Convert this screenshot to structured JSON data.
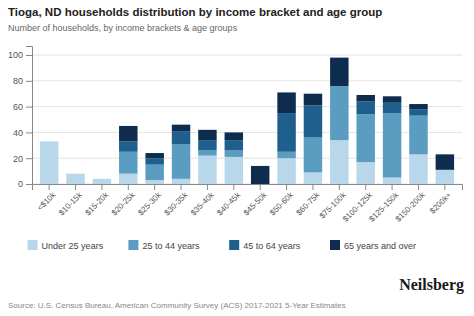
{
  "chart_data": {
    "type": "bar",
    "stacked": true,
    "title": "Tioga, ND households distribution by income bracket and age group",
    "subtitle": "Number of households, by income brackets & age groups",
    "annotations": [
      "Source: U.S. Census Bureau, American Community Survey (ACS) 2017-2021 5-Year Estimates",
      "Neilsberg"
    ],
    "categories": [
      "<$10k",
      "$10-15k",
      "$15-20k",
      "$20-25k",
      "$25-30k",
      "$30-35k",
      "$35-40k",
      "$40-45k",
      "$45-50k",
      "$50-60k",
      "$60-75k",
      "$75-100k",
      "$100-125k",
      "$125-150k",
      "$150-200k",
      "$200k+"
    ],
    "series": [
      {
        "name": "Under 25 years",
        "color": "#b8d7ea",
        "values": [
          33,
          8,
          4,
          8,
          3,
          4,
          22,
          21,
          0,
          20,
          9,
          34,
          17,
          5,
          23,
          11
        ]
      },
      {
        "name": "25 to 44 years",
        "color": "#5b9dc0",
        "values": [
          0,
          0,
          0,
          17,
          12,
          27,
          4,
          5,
          0,
          5,
          27,
          42,
          37,
          50,
          30,
          0
        ]
      },
      {
        "name": "45 to 64 years",
        "color": "#1e5f8e",
        "values": [
          0,
          0,
          0,
          8,
          5,
          10,
          8,
          8,
          0,
          30,
          25,
          0,
          10,
          8,
          5,
          0
        ]
      },
      {
        "name": "65 years and over",
        "color": "#0d2c4e",
        "values": [
          0,
          0,
          0,
          12,
          4,
          5,
          8,
          6,
          14,
          16,
          9,
          22,
          5,
          5,
          4,
          12
        ]
      }
    ],
    "ylim": [
      0,
      107
    ],
    "yticks": [
      0,
      20,
      40,
      60,
      80,
      100
    ],
    "grid": true,
    "legend": "bottom"
  }
}
